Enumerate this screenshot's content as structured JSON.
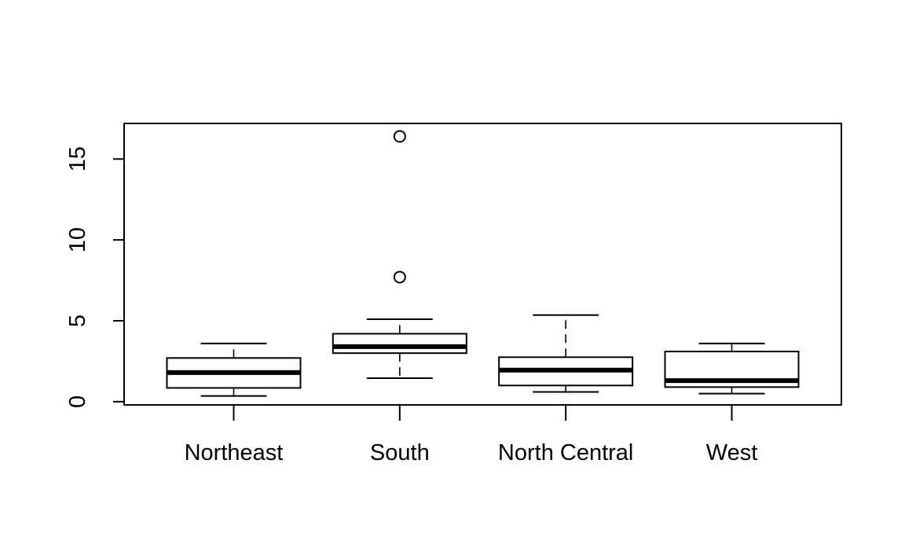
{
  "chart_data": {
    "type": "boxplot",
    "title": "",
    "xlabel": "",
    "ylabel": "",
    "ylim": [
      -0.2,
      17.2
    ],
    "y_ticks": [
      0,
      5,
      10,
      15
    ],
    "y_tick_labels": [
      "0",
      "5",
      "10",
      "15"
    ],
    "categories": [
      "Northeast",
      "South",
      "North Central",
      "West"
    ],
    "boxes": [
      {
        "name": "Northeast",
        "whisker_low": 0.35,
        "q1": 0.85,
        "median": 1.8,
        "q3": 2.7,
        "whisker_high": 3.6,
        "outliers": []
      },
      {
        "name": "South",
        "whisker_low": 1.45,
        "q1": 3.0,
        "median": 3.4,
        "q3": 4.2,
        "whisker_high": 5.1,
        "outliers": [
          7.7,
          16.4
        ]
      },
      {
        "name": "North Central",
        "whisker_low": 0.6,
        "q1": 1.0,
        "median": 1.95,
        "q3": 2.75,
        "whisker_high": 5.35,
        "outliers": []
      },
      {
        "name": "West",
        "whisker_low": 0.5,
        "q1": 0.9,
        "median": 1.3,
        "q3": 3.1,
        "whisker_high": 3.6,
        "outliers": []
      }
    ]
  }
}
